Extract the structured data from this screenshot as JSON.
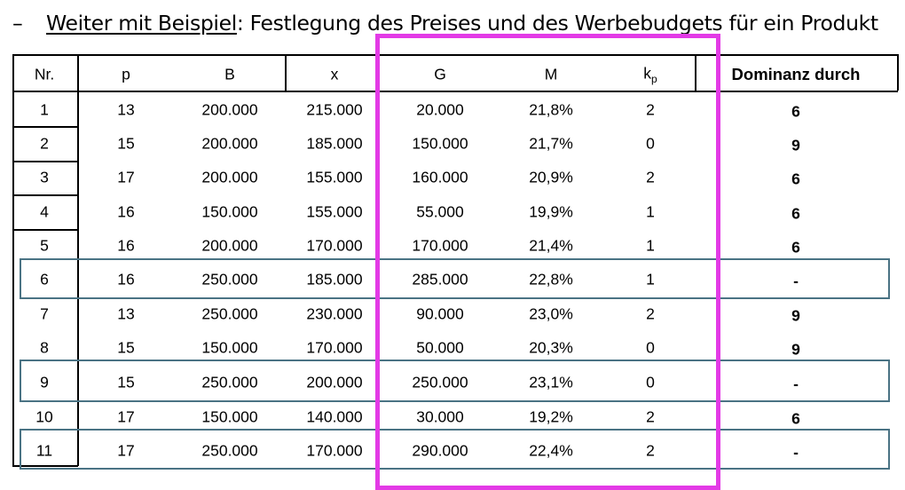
{
  "heading": {
    "dash": "–",
    "underlined": "Weiter mit Beispiel",
    "rest": ": Festlegung des Preises und des Werbebudgets für ein Produkt"
  },
  "table": {
    "columns": [
      "Nr.",
      "p",
      "B",
      "x",
      "G",
      "M",
      "k",
      "p",
      "Dominanz durch"
    ],
    "rows": [
      {
        "nr": "1",
        "p": "13",
        "B": "200.000",
        "x": "215.000",
        "G": "20.000",
        "M": "21,8%",
        "kp": "2",
        "dom": "6"
      },
      {
        "nr": "2",
        "p": "15",
        "B": "200.000",
        "x": "185.000",
        "G": "150.000",
        "M": "21,7%",
        "kp": "0",
        "dom": "9"
      },
      {
        "nr": "3",
        "p": "17",
        "B": "200.000",
        "x": "155.000",
        "G": "160.000",
        "M": "20,9%",
        "kp": "2",
        "dom": "6"
      },
      {
        "nr": "4",
        "p": "16",
        "B": "150.000",
        "x": "155.000",
        "G": "55.000",
        "M": "19,9%",
        "kp": "1",
        "dom": "6"
      },
      {
        "nr": "5",
        "p": "16",
        "B": "200.000",
        "x": "170.000",
        "G": "170.000",
        "M": "21,4%",
        "kp": "1",
        "dom": "6"
      },
      {
        "nr": "6",
        "p": "16",
        "B": "250.000",
        "x": "185.000",
        "G": "285.000",
        "M": "22,8%",
        "kp": "1",
        "dom": "-"
      },
      {
        "nr": "7",
        "p": "13",
        "B": "250.000",
        "x": "230.000",
        "G": "90.000",
        "M": "23,0%",
        "kp": "2",
        "dom": "9"
      },
      {
        "nr": "8",
        "p": "15",
        "B": "150.000",
        "x": "170.000",
        "G": "50.000",
        "M": "20,3%",
        "kp": "0",
        "dom": "9"
      },
      {
        "nr": "9",
        "p": "15",
        "B": "250.000",
        "x": "200.000",
        "G": "250.000",
        "M": "23,1%",
        "kp": "0",
        "dom": "-"
      },
      {
        "nr": "10",
        "p": "17",
        "B": "150.000",
        "x": "140.000",
        "G": "30.000",
        "M": "19,2%",
        "kp": "2",
        "dom": "6"
      },
      {
        "nr": "11",
        "p": "17",
        "B": "250.000",
        "x": "170.000",
        "G": "290.000",
        "M": "22,4%",
        "kp": "2",
        "dom": "-"
      }
    ]
  },
  "colors": {
    "highlight_magenta": "#e33ae6",
    "highlight_blue": "#4a7384"
  }
}
